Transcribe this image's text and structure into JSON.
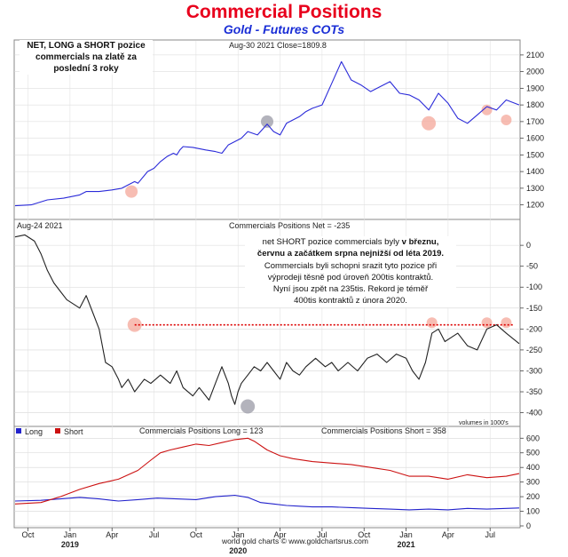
{
  "title": "Commercial Positions",
  "subtitle": "Gold - Futures COTs",
  "note_top": {
    "line1": "NET, LONG a SHORT pozice",
    "line2": "commercials na zlatě za",
    "line3": "poslední 3 roky"
  },
  "note_mid": {
    "line1_a": "net SHORT pozice commercials byly ",
    "line1_b": "v březnu,",
    "line2": "červnu a začátkem srpna nejnižší od léta 2019.",
    "line3": "Commercials byli schopni srazit tyto pozice při",
    "line4": "výprodeji těsně pod úroveň 200tis kontraktů.",
    "line5": "Nyní jsou zpět na 235tis. Rekord je téměř",
    "line6": "400tis kontraktů z února 2020."
  },
  "footer": "world gold charts © www.goldchartsrus.com",
  "colors": {
    "title": "#e8001c",
    "subtitle": "#1a2ed6",
    "price_line": "#2b2bd9",
    "net_line": "#222222",
    "long_line": "#2222cc",
    "short_line": "#cc1111",
    "dotted_line": "#dd0000",
    "highlight_salmon": "#f4a79a",
    "highlight_gray": "#9a9aa6"
  },
  "chart_data": [
    {
      "type": "line",
      "name": "Gold price",
      "header_left": "Aug-30  2021  Close=1809.8",
      "y_ticks": [
        1200,
        1300,
        1400,
        1500,
        1600,
        1700,
        1800,
        1900,
        2000,
        2100
      ],
      "ylim": [
        1150,
        2110
      ],
      "x": [
        0,
        5,
        10,
        15,
        20,
        22,
        26,
        30,
        33,
        35,
        37,
        38,
        41,
        43,
        45,
        47,
        49,
        50,
        51,
        52,
        55,
        59,
        62,
        64,
        66,
        68,
        70,
        72,
        75,
        78,
        80,
        82,
        84,
        86,
        88,
        90,
        92,
        95,
        98,
        101,
        104,
        107,
        110,
        113,
        116,
        119,
        122,
        125,
        128,
        131,
        134,
        137,
        140,
        143,
        146,
        149,
        152,
        156
      ],
      "values": [
        1195,
        1200,
        1230,
        1240,
        1260,
        1280,
        1280,
        1290,
        1300,
        1320,
        1340,
        1330,
        1400,
        1420,
        1460,
        1490,
        1510,
        1500,
        1530,
        1550,
        1545,
        1530,
        1520,
        1510,
        1560,
        1580,
        1600,
        1640,
        1620,
        1685,
        1640,
        1620,
        1690,
        1710,
        1730,
        1760,
        1780,
        1800,
        1930,
        2060,
        1950,
        1920,
        1880,
        1910,
        1940,
        1870,
        1860,
        1830,
        1770,
        1870,
        1810,
        1720,
        1690,
        1740,
        1790,
        1770,
        1830,
        1800
      ]
    },
    {
      "type": "line",
      "name": "Commercials Positions Net",
      "header_left": "Aug-24  2021",
      "header_center": "Commercials Positions Net = -235",
      "y_ticks": [
        0,
        -50,
        -100,
        -150,
        -200,
        -250,
        -300,
        -350,
        -400
      ],
      "ylim": [
        -420,
        30
      ],
      "footnote": "volumes in 1000's",
      "x": [
        0,
        3,
        6,
        8,
        10,
        12,
        14,
        16,
        18,
        20,
        22,
        24,
        26,
        28,
        30,
        32,
        33,
        35,
        37,
        39,
        40,
        42,
        45,
        48,
        50,
        52,
        55,
        57,
        60,
        62,
        64,
        66,
        67,
        68,
        69,
        70,
        72,
        74,
        76,
        78,
        80,
        82,
        84,
        86,
        88,
        90,
        93,
        96,
        98,
        100,
        103,
        106,
        109,
        112,
        115,
        118,
        121,
        123,
        125,
        127,
        129,
        131,
        133,
        135,
        137,
        140,
        143,
        146,
        149,
        152,
        156
      ],
      "values": [
        20,
        25,
        10,
        -20,
        -60,
        -90,
        -110,
        -130,
        -140,
        -150,
        -120,
        -160,
        -200,
        -280,
        -290,
        -320,
        -340,
        -320,
        -350,
        -330,
        -320,
        -330,
        -310,
        -330,
        -300,
        -340,
        -360,
        -340,
        -370,
        -330,
        -290,
        -330,
        -360,
        -380,
        -350,
        -330,
        -310,
        -290,
        -300,
        -280,
        -300,
        -320,
        -280,
        -300,
        -310,
        -290,
        -270,
        -290,
        -280,
        -300,
        -280,
        -300,
        -270,
        -260,
        -280,
        -260,
        -270,
        -300,
        -320,
        -280,
        -210,
        -200,
        -230,
        -220,
        -210,
        -240,
        -250,
        -200,
        -190,
        -210,
        -235
      ]
    },
    {
      "type": "line",
      "header_center_long": "Commercials Positions Long = 123",
      "header_center_short": "Commercials Positions Short = 358",
      "y_ticks": [
        0,
        100,
        200,
        300,
        400,
        500,
        600
      ],
      "ylim": [
        0,
        620
      ],
      "legend": [
        "Long",
        "Short"
      ],
      "x_tick_labels": [
        "Oct",
        "Jan",
        "Apr",
        "Jul",
        "Oct",
        "Jan",
        "Apr",
        "Jul",
        "Oct",
        "Jan",
        "Apr",
        "Jul"
      ],
      "year_labels": [
        "2019",
        "2020",
        "2021"
      ],
      "series": [
        {
          "name": "Long",
          "x": [
            0,
            8,
            14,
            20,
            26,
            32,
            38,
            44,
            50,
            56,
            62,
            68,
            72,
            76,
            80,
            84,
            88,
            92,
            98,
            104,
            110,
            116,
            122,
            128,
            134,
            140,
            146,
            152,
            156
          ],
          "values": [
            170,
            175,
            185,
            195,
            185,
            170,
            180,
            190,
            185,
            180,
            200,
            210,
            195,
            160,
            150,
            140,
            135,
            130,
            130,
            125,
            120,
            115,
            110,
            115,
            110,
            120,
            115,
            120,
            123
          ]
        },
        {
          "name": "Short",
          "x": [
            0,
            8,
            14,
            20,
            26,
            32,
            38,
            42,
            45,
            48,
            52,
            56,
            60,
            64,
            68,
            72,
            74,
            78,
            82,
            86,
            92,
            98,
            104,
            110,
            116,
            122,
            128,
            134,
            140,
            146,
            152,
            156
          ],
          "values": [
            150,
            160,
            200,
            250,
            290,
            320,
            380,
            450,
            500,
            520,
            540,
            560,
            550,
            570,
            590,
            600,
            580,
            520,
            480,
            460,
            440,
            430,
            420,
            400,
            380,
            340,
            340,
            320,
            350,
            330,
            340,
            358
          ]
        }
      ]
    }
  ]
}
